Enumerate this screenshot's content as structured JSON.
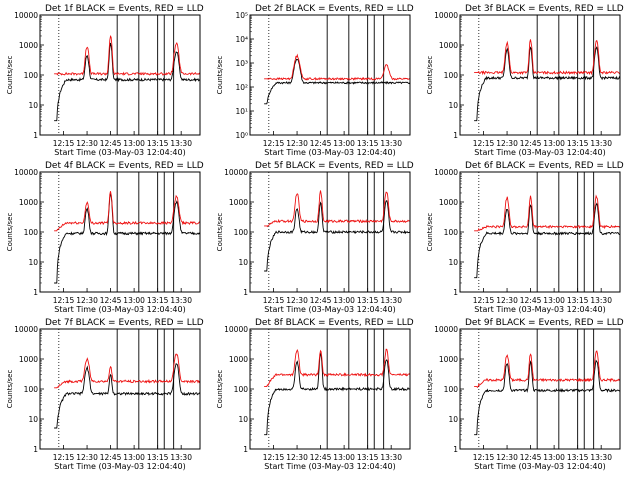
{
  "colors": {
    "events": "#000000",
    "lld": "#ee1111",
    "axes": "#000000",
    "background": "#ffffff"
  },
  "x_axis": {
    "ticks": [
      "12:15",
      "12:30",
      "12:45",
      "13:00",
      "13:15",
      "13:30"
    ],
    "range_minutes": [
      12.0,
      13.7
    ],
    "xlabel": "Start Time (03-May-03 12:04:40)"
  },
  "y_axis": {
    "ylabel": "Counts/sec",
    "scale": "log",
    "tick_labels_standard": [
      "1",
      "10",
      "100",
      "1000",
      "10000"
    ],
    "tick_labels_det2": [
      "10⁰",
      "10¹",
      "10²",
      "10³",
      "10⁴",
      "10⁵"
    ]
  },
  "chart_data": [
    {
      "type": "line",
      "title": "Det 1f BLACK = Events, RED = LLD",
      "ylim": [
        1,
        10000
      ],
      "series": [
        {
          "name": "Events",
          "color": "#000000",
          "baseline": 70,
          "start": 3,
          "peaks": [
            [
              12.5,
              450,
              0.02
            ],
            [
              12.75,
              1100,
              0.015
            ],
            [
              13.45,
              600,
              0.025
            ]
          ]
        },
        {
          "name": "LLD",
          "color": "#ee1111",
          "baseline": 110,
          "start": 110,
          "peaks": [
            [
              12.5,
              900,
              0.02
            ],
            [
              12.75,
              2000,
              0.015
            ],
            [
              13.45,
              1100,
              0.025
            ]
          ]
        }
      ]
    },
    {
      "type": "line",
      "title": "Det 2f BLACK = Events, RED = LLD",
      "ylim": [
        1,
        100000
      ],
      "series": [
        {
          "name": "Events",
          "color": "#000000",
          "baseline": 150,
          "start": 20,
          "peaks": [
            [
              12.5,
              1500,
              0.03
            ]
          ]
        },
        {
          "name": "LLD",
          "color": "#ee1111",
          "baseline": 220,
          "start": 220,
          "peaks": [
            [
              12.5,
              2000,
              0.03
            ],
            [
              13.45,
              800,
              0.03
            ]
          ]
        }
      ]
    },
    {
      "type": "line",
      "title": "Det 3f BLACK = Events, RED = LLD",
      "ylim": [
        1,
        10000
      ],
      "series": [
        {
          "name": "Events",
          "color": "#000000",
          "baseline": 80,
          "start": 3,
          "peaks": [
            [
              12.5,
              700,
              0.02
            ],
            [
              12.75,
              900,
              0.015
            ],
            [
              13.45,
              800,
              0.02
            ]
          ]
        },
        {
          "name": "LLD",
          "color": "#ee1111",
          "baseline": 120,
          "start": 120,
          "peaks": [
            [
              12.5,
              1200,
              0.02
            ],
            [
              12.75,
              1500,
              0.015
            ],
            [
              13.45,
              1400,
              0.02
            ]
          ]
        }
      ]
    },
    {
      "type": "line",
      "title": "Det 4f BLACK = Events, RED = LLD",
      "ylim": [
        1,
        10000
      ],
      "series": [
        {
          "name": "Events",
          "color": "#000000",
          "baseline": 90,
          "start": 2,
          "peaks": [
            [
              12.5,
              600,
              0.02
            ],
            [
              12.75,
              2000,
              0.015
            ],
            [
              13.45,
              1000,
              0.025
            ]
          ]
        },
        {
          "name": "LLD",
          "color": "#ee1111",
          "baseline": 200,
          "start": 110,
          "peaks": [
            [
              12.5,
              1000,
              0.02
            ],
            [
              12.75,
              2200,
              0.015
            ],
            [
              13.45,
              1500,
              0.025
            ]
          ]
        }
      ]
    },
    {
      "type": "line",
      "title": "Det 5f BLACK = Events, RED = LLD",
      "ylim": [
        1,
        10000
      ],
      "series": [
        {
          "name": "Events",
          "color": "#000000",
          "baseline": 100,
          "start": 5,
          "peaks": [
            [
              12.5,
              600,
              0.02
            ],
            [
              12.75,
              1000,
              0.015
            ],
            [
              13.45,
              1100,
              0.02
            ]
          ]
        },
        {
          "name": "LLD",
          "color": "#ee1111",
          "baseline": 230,
          "start": 160,
          "peaks": [
            [
              12.5,
              2000,
              0.02
            ],
            [
              12.75,
              2300,
              0.015
            ],
            [
              13.45,
              2200,
              0.02
            ]
          ]
        }
      ]
    },
    {
      "type": "line",
      "title": "Det 6f BLACK = Events, RED = LLD",
      "ylim": [
        1,
        10000
      ],
      "series": [
        {
          "name": "Events",
          "color": "#000000",
          "baseline": 90,
          "start": 3,
          "peaks": [
            [
              12.5,
              600,
              0.02
            ],
            [
              12.75,
              800,
              0.015
            ],
            [
              13.45,
              900,
              0.02
            ]
          ]
        },
        {
          "name": "LLD",
          "color": "#ee1111",
          "baseline": 150,
          "start": 110,
          "peaks": [
            [
              12.5,
              1400,
              0.02
            ],
            [
              12.75,
              1500,
              0.015
            ],
            [
              13.45,
              1500,
              0.02
            ]
          ]
        }
      ]
    },
    {
      "type": "line",
      "title": "Det 7f BLACK = Events, RED = LLD",
      "ylim": [
        1,
        10000
      ],
      "series": [
        {
          "name": "Events",
          "color": "#000000",
          "baseline": 70,
          "start": 5,
          "peaks": [
            [
              12.5,
              500,
              0.025
            ],
            [
              12.75,
              300,
              0.015
            ],
            [
              13.45,
              700,
              0.025
            ]
          ]
        },
        {
          "name": "LLD",
          "color": "#ee1111",
          "baseline": 180,
          "start": 110,
          "peaks": [
            [
              12.5,
              1000,
              0.025
            ],
            [
              12.75,
              600,
              0.015
            ],
            [
              13.45,
              1500,
              0.025
            ]
          ]
        }
      ]
    },
    {
      "type": "line",
      "title": "Det 8f BLACK = Events, RED = LLD",
      "ylim": [
        1,
        10000
      ],
      "series": [
        {
          "name": "Events",
          "color": "#000000",
          "baseline": 100,
          "start": 3,
          "peaks": [
            [
              12.5,
              800,
              0.02
            ],
            [
              12.75,
              1500,
              0.015
            ],
            [
              13.45,
              1000,
              0.02
            ]
          ]
        },
        {
          "name": "LLD",
          "color": "#ee1111",
          "baseline": 300,
          "start": 120,
          "peaks": [
            [
              12.5,
              2000,
              0.02
            ],
            [
              12.75,
              2000,
              0.015
            ],
            [
              13.45,
              2000,
              0.02
            ]
          ]
        }
      ]
    },
    {
      "type": "line",
      "title": "Det 9f BLACK = Events, RED = LLD",
      "ylim": [
        1,
        10000
      ],
      "series": [
        {
          "name": "Events",
          "color": "#000000",
          "baseline": 90,
          "start": 3,
          "peaks": [
            [
              12.5,
              700,
              0.02
            ],
            [
              12.75,
              800,
              0.015
            ],
            [
              13.45,
              900,
              0.02
            ]
          ]
        },
        {
          "name": "LLD",
          "color": "#ee1111",
          "baseline": 200,
          "start": 120,
          "peaks": [
            [
              12.5,
              1400,
              0.02
            ],
            [
              12.75,
              1500,
              0.015
            ],
            [
              13.45,
              1800,
              0.02
            ]
          ]
        }
      ]
    }
  ]
}
